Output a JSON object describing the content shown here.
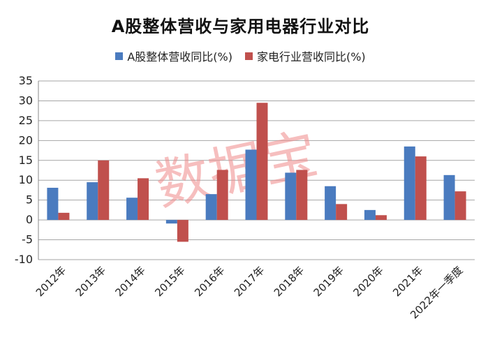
{
  "colors": {
    "series_a": "#4a7bbf",
    "series_b": "#c0504d",
    "grid": "#a6a6a6",
    "watermark": "#f08a8a"
  },
  "watermark_text": "数据宝",
  "chart_data": {
    "type": "bar",
    "title": "A股整体营收与家用电器行业对比",
    "xlabel": "",
    "ylabel": "",
    "categories": [
      "2012年",
      "2013年",
      "2014年",
      "2015年",
      "2016年",
      "2017年",
      "2018年",
      "2019年",
      "2020年",
      "2021年",
      "2022年一季度"
    ],
    "series": [
      {
        "name": "A股整体营收同比(%)",
        "values": [
          8.1,
          9.5,
          5.6,
          -0.9,
          6.5,
          17.7,
          11.9,
          8.5,
          2.5,
          18.5,
          11.3
        ]
      },
      {
        "name": "家电行业营收同比(%)",
        "values": [
          1.8,
          15.0,
          10.5,
          -5.5,
          12.6,
          29.5,
          12.6,
          4.0,
          1.2,
          16.0,
          7.2
        ]
      }
    ],
    "ylim": [
      -10,
      35
    ],
    "yticks": [
      "35",
      "30",
      "25",
      "20",
      "15",
      "10",
      "5",
      "0",
      "-5",
      "-10"
    ],
    "ytick_values": [
      35,
      30,
      25,
      20,
      15,
      10,
      5,
      0,
      -5,
      -10
    ],
    "grid": true,
    "legend_position": "top"
  }
}
